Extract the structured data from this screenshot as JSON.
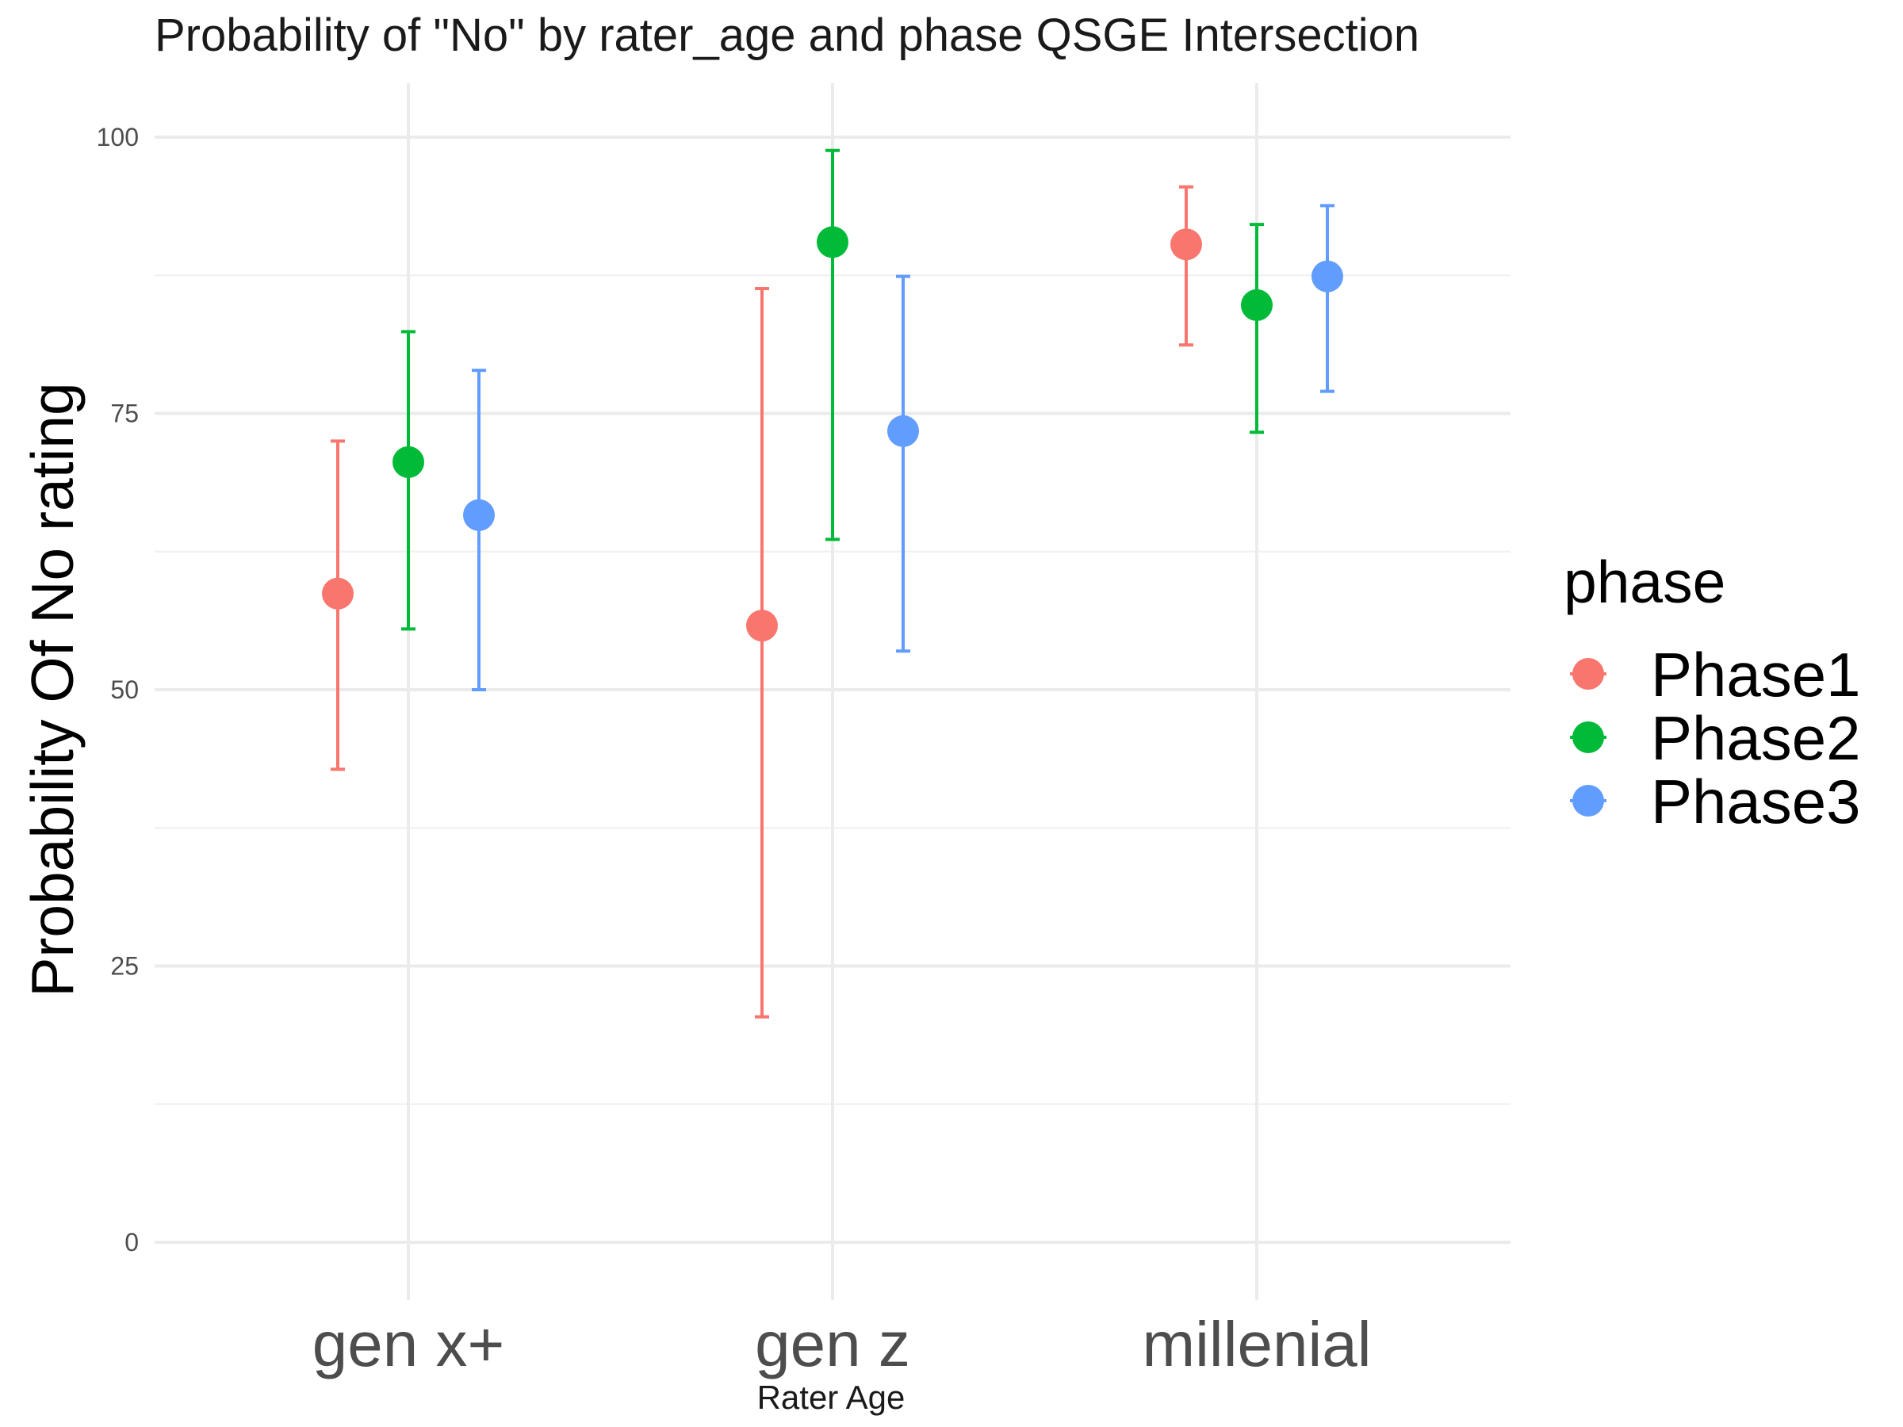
{
  "chart_data": {
    "type": "scatter",
    "title": "Probability of \"No\" by rater_age and  phase  QSGE Intersection",
    "xlabel": "Rater Age",
    "ylabel": "Probability Of No rating",
    "categories": [
      "gen x+",
      "gen z",
      "millenial"
    ],
    "ylim": [
      -5,
      105
    ],
    "yticks": [
      0,
      25,
      50,
      75,
      100
    ],
    "grid": true,
    "legend": {
      "title": "phase",
      "position": "right"
    },
    "series": [
      {
        "name": "Phase1",
        "color": "#F8766D",
        "values": [
          58.7,
          55.8,
          90.3
        ],
        "lower": [
          42.8,
          20.4,
          81.2
        ],
        "upper": [
          72.5,
          86.3,
          95.5
        ]
      },
      {
        "name": "Phase2",
        "color": "#00BA38",
        "values": [
          70.6,
          90.5,
          84.8
        ],
        "lower": [
          55.5,
          63.6,
          73.3
        ],
        "upper": [
          82.4,
          98.8,
          92.1
        ]
      },
      {
        "name": "Phase3",
        "color": "#619CFF",
        "values": [
          65.8,
          73.4,
          87.4
        ],
        "lower": [
          50.0,
          53.5,
          77.0
        ],
        "upper": [
          78.9,
          87.4,
          93.8
        ]
      }
    ]
  }
}
